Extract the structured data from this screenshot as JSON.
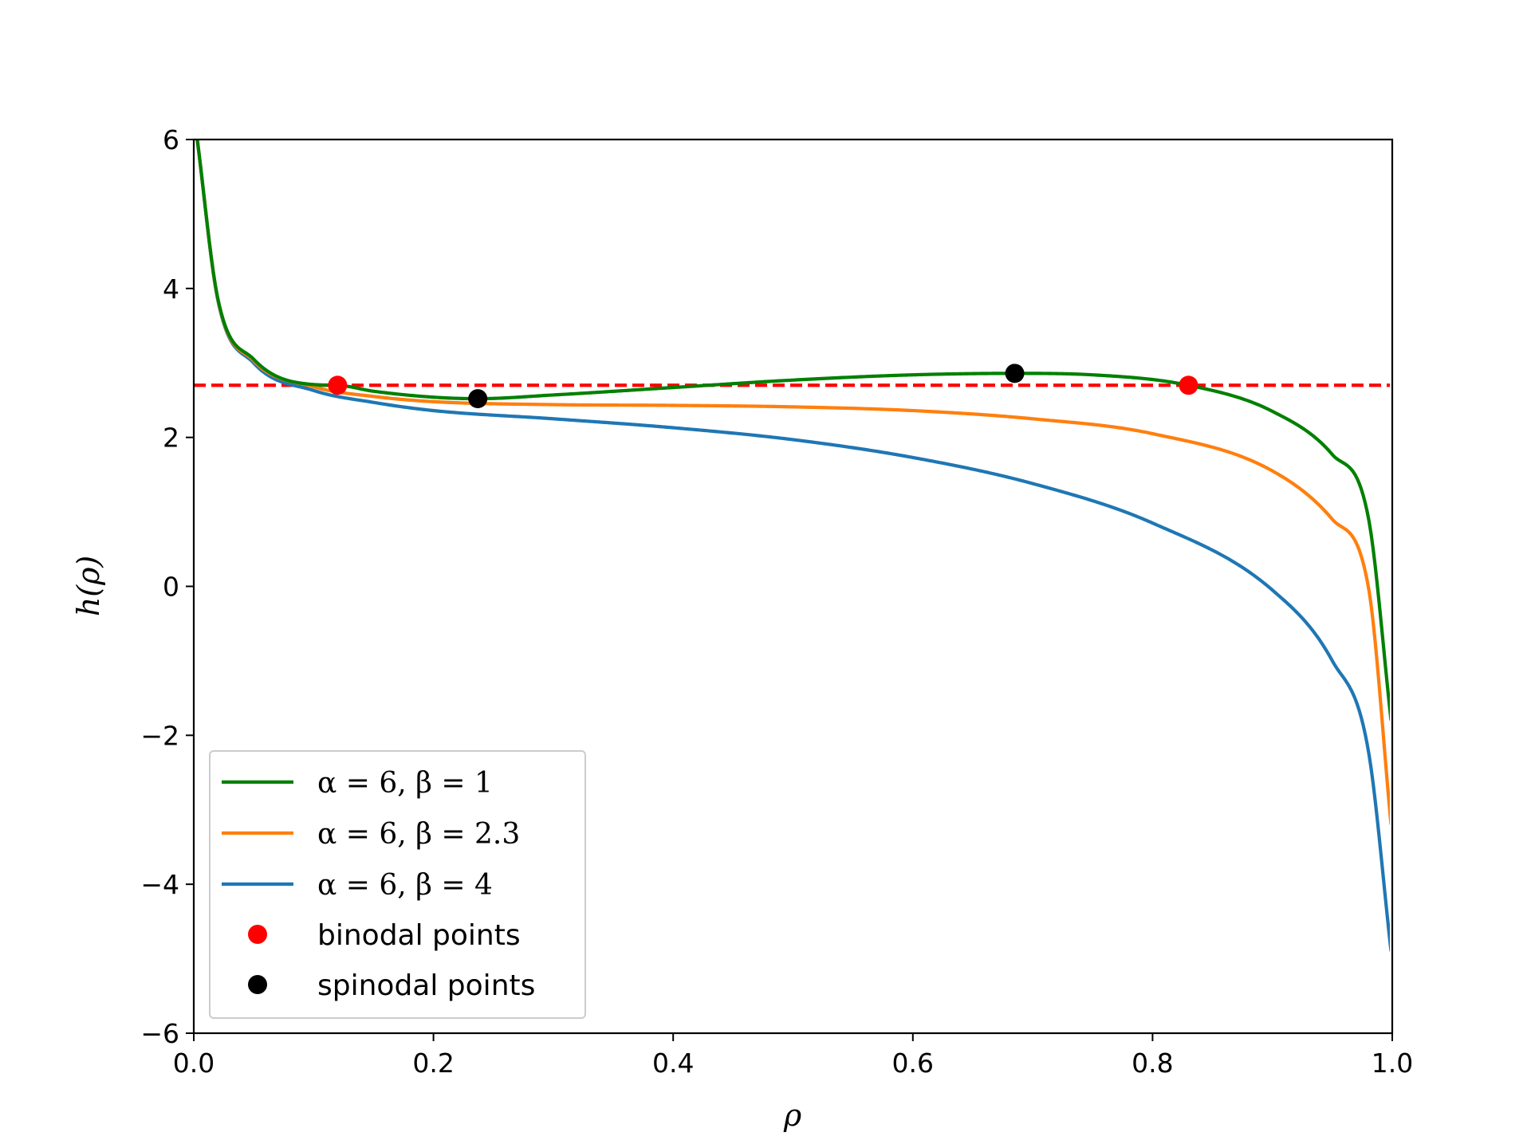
{
  "chart_data": {
    "type": "line",
    "title": "",
    "xlabel": "ρ",
    "ylabel": "h(ρ)",
    "xlim": [
      0.0,
      1.0
    ],
    "ylim": [
      -6,
      6
    ],
    "xticks": [
      "0.0",
      "0.2",
      "0.4",
      "0.6",
      "0.8",
      "1.0"
    ],
    "yticks": [
      "−6",
      "−4",
      "−2",
      "0",
      "2",
      "4",
      "6"
    ],
    "xtick_values": [
      0.0,
      0.2,
      0.4,
      0.6,
      0.8,
      1.0
    ],
    "ytick_values": [
      -6,
      -4,
      -2,
      0,
      2,
      4,
      6
    ],
    "grid": false,
    "legend_position": "lower-left",
    "series": [
      {
        "name": "α = 6, β = 1",
        "color": "#008000",
        "alpha": 6,
        "beta": 1,
        "x": [
          0.003,
          0.02,
          0.05,
          0.1,
          0.12,
          0.15,
          0.2,
          0.237,
          0.3,
          0.4,
          0.5,
          0.6,
          0.685,
          0.75,
          0.83,
          0.9,
          0.95,
          0.98,
          0.999
        ],
        "y": [
          5.99,
          3.87,
          3.05,
          2.71,
          2.7,
          2.62,
          2.54,
          2.52,
          2.57,
          2.67,
          2.77,
          2.84,
          2.86,
          2.84,
          2.7,
          2.35,
          1.77,
          0.93,
          -1.8
        ]
      },
      {
        "name": "α = 6, β = 2.3",
        "color": "#ff7f0e",
        "alpha": 6,
        "beta": 2.3,
        "x": [
          0.003,
          0.02,
          0.05,
          0.1,
          0.15,
          0.2,
          0.3,
          0.4,
          0.5,
          0.6,
          0.7,
          0.8,
          0.9,
          0.95,
          0.98,
          0.999
        ],
        "y": [
          5.99,
          3.86,
          3.03,
          2.68,
          2.55,
          2.48,
          2.44,
          2.43,
          2.41,
          2.36,
          2.25,
          2.05,
          1.55,
          0.9,
          0.0,
          -3.2
        ]
      },
      {
        "name": "α = 6, β = 4",
        "color": "#1f77b4",
        "alpha": 6,
        "beta": 4,
        "x": [
          0.003,
          0.02,
          0.05,
          0.1,
          0.15,
          0.2,
          0.3,
          0.4,
          0.5,
          0.6,
          0.7,
          0.8,
          0.9,
          0.95,
          0.98,
          0.999
        ],
        "y": [
          5.99,
          3.85,
          3.0,
          2.63,
          2.47,
          2.36,
          2.25,
          2.13,
          1.97,
          1.73,
          1.38,
          0.85,
          -0.05,
          -1.0,
          -2.2,
          -4.9
        ]
      }
    ],
    "reference_line": {
      "type": "horizontal",
      "y": 2.7,
      "color": "#ff0000",
      "style": "dashed"
    },
    "scatter_series": [
      {
        "name": "binodal points",
        "color": "#ff0000",
        "points": [
          {
            "x": 0.12,
            "y": 2.7
          },
          {
            "x": 0.83,
            "y": 2.7
          }
        ]
      },
      {
        "name": "spinodal points",
        "color": "#000000",
        "points": [
          {
            "x": 0.237,
            "y": 2.52
          },
          {
            "x": 0.685,
            "y": 2.86
          }
        ]
      }
    ]
  }
}
